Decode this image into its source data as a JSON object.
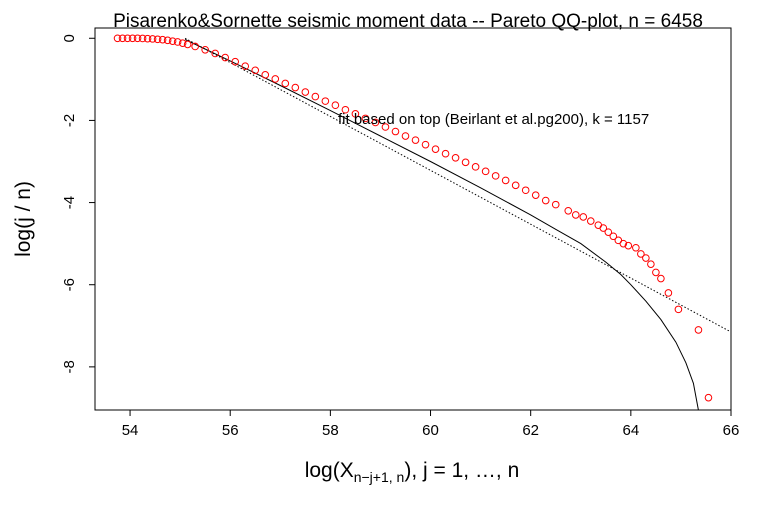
{
  "chart_data": {
    "type": "scatter",
    "title": "Pisarenko&Sornette seismic moment data -- Pareto QQ-plot, n = 6458",
    "xlabel": {
      "prefix": "log(X",
      "subscript": "n−j+1, n",
      "suffix": "), j = 1, …, n"
    },
    "ylabel": "log(j / n)",
    "annotation": "fit based on top (Beirlant et al.pg200), k = 1157",
    "xlim": [
      53.3,
      66.0
    ],
    "ylim": [
      -9.05,
      0.25
    ],
    "xticks": [
      54,
      56,
      58,
      60,
      62,
      64,
      66
    ],
    "yticks": [
      0,
      -2,
      -4,
      -6,
      -8
    ],
    "series": [
      {
        "marker": "open-circle",
        "color": "#ff0000",
        "points": [
          [
            53.75,
            0.0
          ],
          [
            53.85,
            0.0
          ],
          [
            53.95,
            0.0
          ],
          [
            54.05,
            0.0
          ],
          [
            54.15,
            0.0
          ],
          [
            54.25,
            -0.005
          ],
          [
            54.35,
            -0.01
          ],
          [
            54.45,
            -0.015
          ],
          [
            54.55,
            -0.025
          ],
          [
            54.65,
            -0.035
          ],
          [
            54.75,
            -0.05
          ],
          [
            54.85,
            -0.07
          ],
          [
            54.95,
            -0.09
          ],
          [
            55.05,
            -0.12
          ],
          [
            55.15,
            -0.15
          ],
          [
            55.3,
            -0.2
          ],
          [
            55.5,
            -0.28
          ],
          [
            55.7,
            -0.37
          ],
          [
            55.9,
            -0.47
          ],
          [
            56.1,
            -0.57
          ],
          [
            56.3,
            -0.68
          ],
          [
            56.5,
            -0.78
          ],
          [
            56.7,
            -0.89
          ],
          [
            56.9,
            -0.99
          ],
          [
            57.1,
            -1.1
          ],
          [
            57.3,
            -1.2
          ],
          [
            57.5,
            -1.31
          ],
          [
            57.7,
            -1.42
          ],
          [
            57.9,
            -1.53
          ],
          [
            58.1,
            -1.63
          ],
          [
            58.3,
            -1.74
          ],
          [
            58.5,
            -1.84
          ],
          [
            58.7,
            -1.95
          ],
          [
            58.9,
            -2.05
          ],
          [
            59.1,
            -2.16
          ],
          [
            59.3,
            -2.27
          ],
          [
            59.5,
            -2.38
          ],
          [
            59.7,
            -2.48
          ],
          [
            59.9,
            -2.59
          ],
          [
            60.1,
            -2.7
          ],
          [
            60.3,
            -2.81
          ],
          [
            60.5,
            -2.91
          ],
          [
            60.7,
            -3.02
          ],
          [
            60.9,
            -3.13
          ],
          [
            61.1,
            -3.24
          ],
          [
            61.3,
            -3.35
          ],
          [
            61.5,
            -3.46
          ],
          [
            61.7,
            -3.58
          ],
          [
            61.9,
            -3.7
          ],
          [
            62.1,
            -3.82
          ],
          [
            62.3,
            -3.95
          ],
          [
            62.5,
            -4.05
          ],
          [
            62.75,
            -4.2
          ],
          [
            62.9,
            -4.3
          ],
          [
            63.05,
            -4.35
          ],
          [
            63.2,
            -4.45
          ],
          [
            63.35,
            -4.55
          ],
          [
            63.45,
            -4.62
          ],
          [
            63.55,
            -4.72
          ],
          [
            63.65,
            -4.82
          ],
          [
            63.75,
            -4.92
          ],
          [
            63.85,
            -5.0
          ],
          [
            63.95,
            -5.05
          ],
          [
            64.1,
            -5.1
          ],
          [
            64.2,
            -5.25
          ],
          [
            64.3,
            -5.35
          ],
          [
            64.4,
            -5.5
          ],
          [
            64.5,
            -5.7
          ],
          [
            64.6,
            -5.85
          ],
          [
            64.75,
            -6.2
          ],
          [
            64.95,
            -6.6
          ],
          [
            65.35,
            -7.1
          ],
          [
            65.55,
            -8.75
          ]
        ]
      }
    ],
    "reference_lines": [
      {
        "style": "dotted",
        "color": "#000000",
        "points": [
          [
            55.1,
            0.0
          ],
          [
            66.0,
            -7.15
          ]
        ]
      },
      {
        "style": "solid",
        "color": "#000000",
        "points": [
          [
            55.1,
            -0.03
          ],
          [
            56.0,
            -0.55
          ],
          [
            57.0,
            -1.15
          ],
          [
            58.0,
            -1.76
          ],
          [
            59.0,
            -2.38
          ],
          [
            60.0,
            -3.0
          ],
          [
            61.0,
            -3.64
          ],
          [
            62.0,
            -4.3
          ],
          [
            62.5,
            -4.65
          ],
          [
            63.0,
            -5.0
          ],
          [
            63.5,
            -5.45
          ],
          [
            63.8,
            -5.75
          ],
          [
            64.0,
            -6.0
          ],
          [
            64.3,
            -6.4
          ],
          [
            64.6,
            -6.85
          ],
          [
            64.9,
            -7.4
          ],
          [
            65.1,
            -7.9
          ],
          [
            65.25,
            -8.4
          ],
          [
            65.35,
            -9.05
          ]
        ]
      }
    ]
  }
}
